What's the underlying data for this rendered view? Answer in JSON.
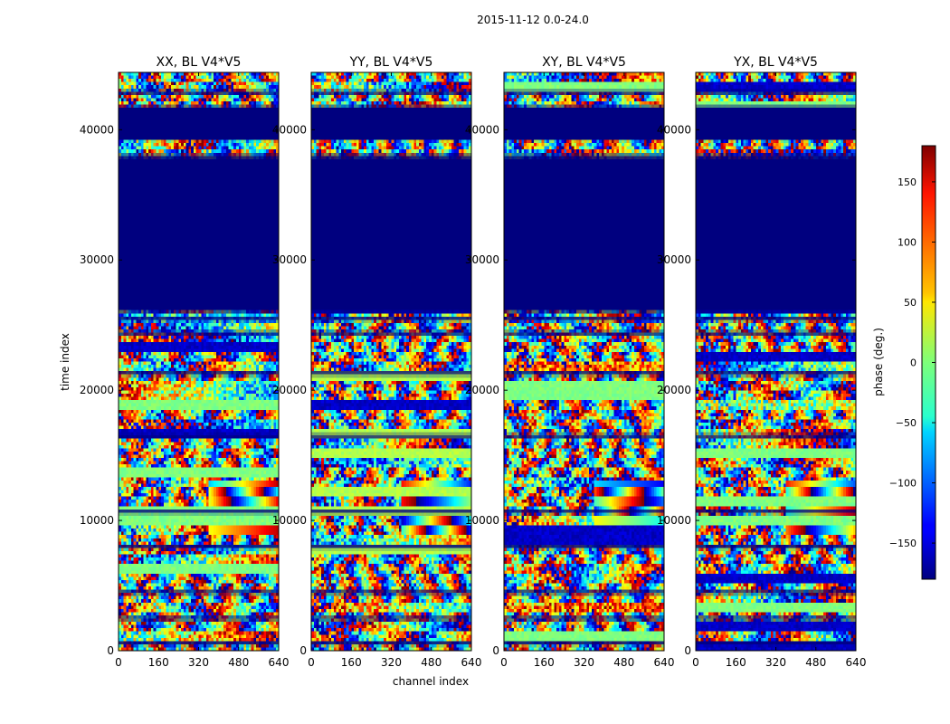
{
  "chart_data": {
    "type": "heatmap",
    "suptitle": "2015-11-12 0.0-24.0",
    "xlabel": "channel index",
    "ylabel": "time index",
    "xlim": [
      0,
      640
    ],
    "ylim": [
      0,
      44400
    ],
    "xticks": [
      0,
      160,
      320,
      480,
      640
    ],
    "xtick_labels": [
      "0",
      "160",
      "320",
      "480",
      "640"
    ],
    "yticks": [
      0,
      10000,
      20000,
      30000,
      40000
    ],
    "ytick_labels": [
      "0",
      "10000",
      "20000",
      "30000",
      "40000"
    ],
    "panels": [
      {
        "title": "XX, BL V4*V5",
        "pol": "XX"
      },
      {
        "title": "YY, BL V4*V5",
        "pol": "YY"
      },
      {
        "title": "XY, BL V4*V5",
        "pol": "XY"
      },
      {
        "title": "YX, BL V4*V5",
        "pol": "YX"
      }
    ],
    "blank_time_ranges": [
      [
        26000,
        37900
      ],
      [
        39200,
        41800
      ]
    ],
    "colorbar": {
      "label": "phase (deg.)",
      "vmin": -180,
      "vmax": 180,
      "colormap": "jet",
      "ticks": [
        -150,
        -100,
        -50,
        0,
        50,
        100,
        150
      ],
      "tick_labels": [
        "−150",
        "−100",
        "−50",
        "0",
        "50",
        "100",
        "150"
      ]
    }
  },
  "colors": {
    "blank_fill": "#00007f",
    "axis": "#000000",
    "background": "#ffffff"
  }
}
